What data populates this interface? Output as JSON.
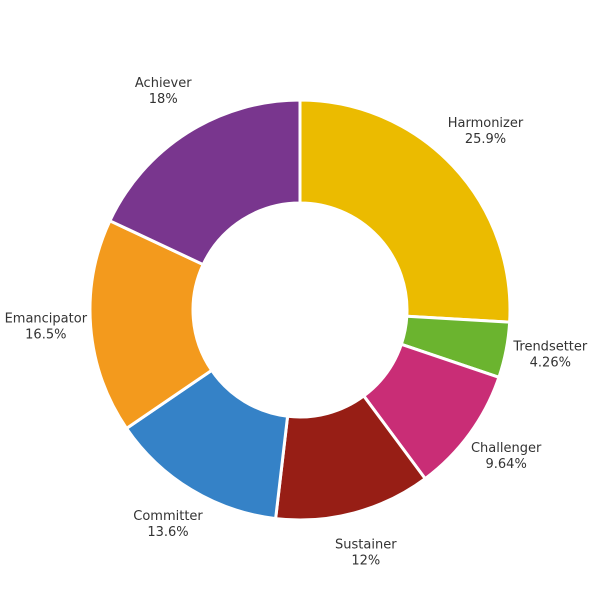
{
  "chart_data": {
    "type": "pie",
    "donut": true,
    "slices": [
      {
        "label": "Harmonizer",
        "value": 25.9,
        "display": "25.9%",
        "color": "#EBBB00"
      },
      {
        "label": "Trendsetter",
        "value": 4.26,
        "display": "4.26%",
        "color": "#6BB42F"
      },
      {
        "label": "Challenger",
        "value": 9.64,
        "display": "9.64%",
        "color": "#C92D76"
      },
      {
        "label": "Sustainer",
        "value": 12,
        "display": "12%",
        "color": "#971E15"
      },
      {
        "label": "Committer",
        "value": 13.6,
        "display": "13.6%",
        "color": "#3582C7"
      },
      {
        "label": "Emancipator",
        "value": 16.5,
        "display": "16.5%",
        "color": "#F39A1D"
      },
      {
        "label": "Achiever",
        "value": 18,
        "display": "18%",
        "color": "#79368E"
      }
    ]
  }
}
